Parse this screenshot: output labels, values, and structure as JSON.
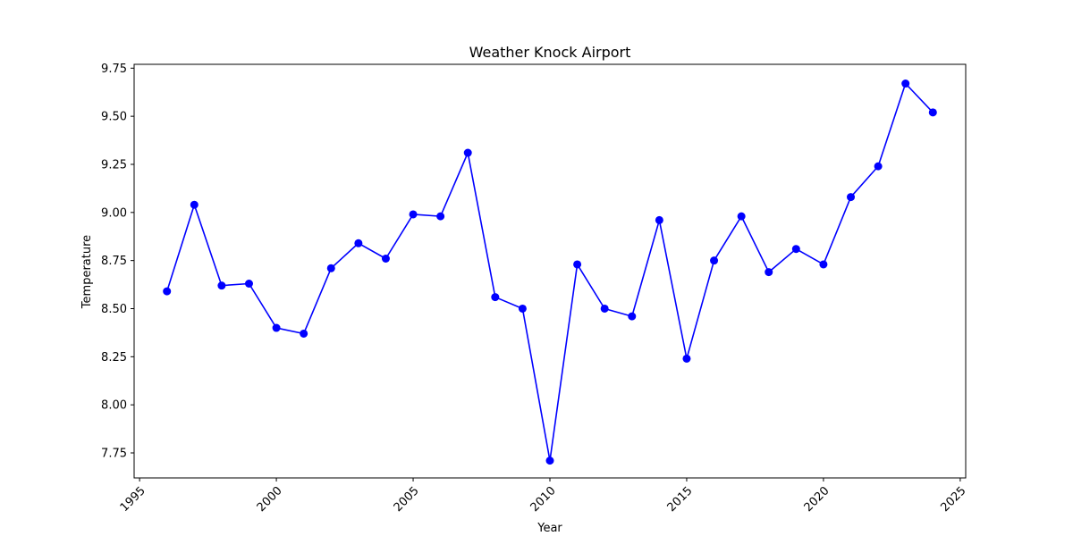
{
  "chart_data": {
    "type": "line",
    "title": "Weather Knock Airport",
    "xlabel": "Year",
    "ylabel": "Temperature",
    "xlim": [
      1994.8,
      2025.2
    ],
    "ylim": [
      7.62,
      9.77
    ],
    "grid": false,
    "x_ticks": [
      1995,
      2000,
      2005,
      2010,
      2015,
      2020,
      2025
    ],
    "x_tick_labels": [
      "1995",
      "2000",
      "2005",
      "2010",
      "2015",
      "2020",
      "2025"
    ],
    "y_ticks": [
      7.75,
      8.0,
      8.25,
      8.5,
      8.75,
      9.0,
      9.25,
      9.5,
      9.75
    ],
    "y_tick_labels": [
      "7.75",
      "8.00",
      "8.25",
      "8.50",
      "8.75",
      "9.00",
      "9.25",
      "9.50",
      "9.75"
    ],
    "series": [
      {
        "color": "#0000ff",
        "marker": "circle",
        "x": [
          1996,
          1997,
          1998,
          1999,
          2000,
          2001,
          2002,
          2003,
          2004,
          2005,
          2006,
          2007,
          2008,
          2009,
          2010,
          2011,
          2012,
          2013,
          2014,
          2015,
          2016,
          2017,
          2018,
          2019,
          2020,
          2021,
          2022,
          2023,
          2024
        ],
        "y": [
          8.59,
          9.04,
          8.62,
          8.63,
          8.4,
          8.37,
          8.71,
          8.84,
          8.76,
          8.99,
          8.98,
          9.31,
          8.56,
          8.5,
          7.71,
          8.73,
          8.5,
          8.46,
          8.96,
          8.24,
          8.75,
          8.98,
          8.69,
          8.81,
          8.73,
          9.08,
          9.24,
          9.67,
          9.52
        ]
      }
    ]
  }
}
